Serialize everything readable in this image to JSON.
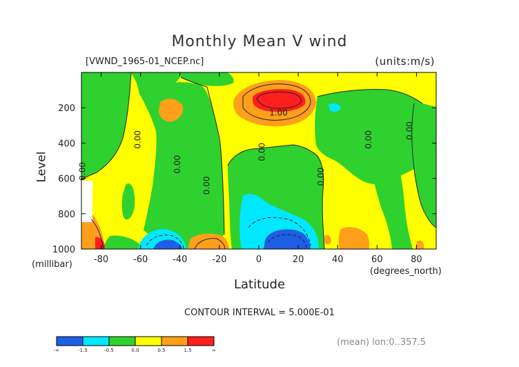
{
  "chart_data": {
    "type": "contour",
    "title": "Monthly Mean V wind",
    "file_label": "[VWND_1965-01_NCEP.nc]",
    "units_label": "(units:m/s)",
    "xlabel": "Latitude",
    "x_unit": "(degrees_north)",
    "ylabel": "Level",
    "y_unit": "(millibar)",
    "xlim": [
      -90,
      90
    ],
    "ylim": [
      1000,
      0
    ],
    "x_ticks": [
      -80,
      -60,
      -40,
      -20,
      0,
      20,
      40,
      60,
      80
    ],
    "y_ticks": [
      200,
      400,
      600,
      800,
      1000
    ],
    "contour_interval_label": "CONTOUR INTERVAL = 5.000E-01",
    "contour_labels": [
      {
        "text": "1.00",
        "lat": 10,
        "lev": 245
      },
      {
        "text": "0.00",
        "lat": -60,
        "lev": 380
      },
      {
        "text": "0.00",
        "lat": -40,
        "lev": 520
      },
      {
        "text": "0.00",
        "lat": -25,
        "lev": 640
      },
      {
        "text": "0.00",
        "lat": 3,
        "lev": 450
      },
      {
        "text": "0.00",
        "lat": 33,
        "lev": 590
      },
      {
        "text": "0.00",
        "lat": 57,
        "lev": 380
      },
      {
        "text": "0.00",
        "lat": 78,
        "lev": 330
      },
      {
        "text": "0.00",
        "lat": -88,
        "lev": 560
      }
    ],
    "colorbar": {
      "levels": [
        "-∞",
        "-1.5",
        "-0.5",
        "0.0",
        "0.5",
        "1.5",
        "∞"
      ],
      "colors": [
        "#1f5fe6",
        "#00e8ff",
        "#2fd12f",
        "#ffff00",
        "#ff9f1a",
        "#ff1f1f"
      ]
    },
    "colors": {
      "strong_negative": "#1f5fe6",
      "negative": "#00e8ff",
      "weak_negative": "#2fd12f",
      "weak_positive": "#ffff00",
      "positive": "#ff9f1a",
      "strong_positive": "#ff1f1f"
    },
    "footer_note": "(mean) lon:0..357.5"
  }
}
